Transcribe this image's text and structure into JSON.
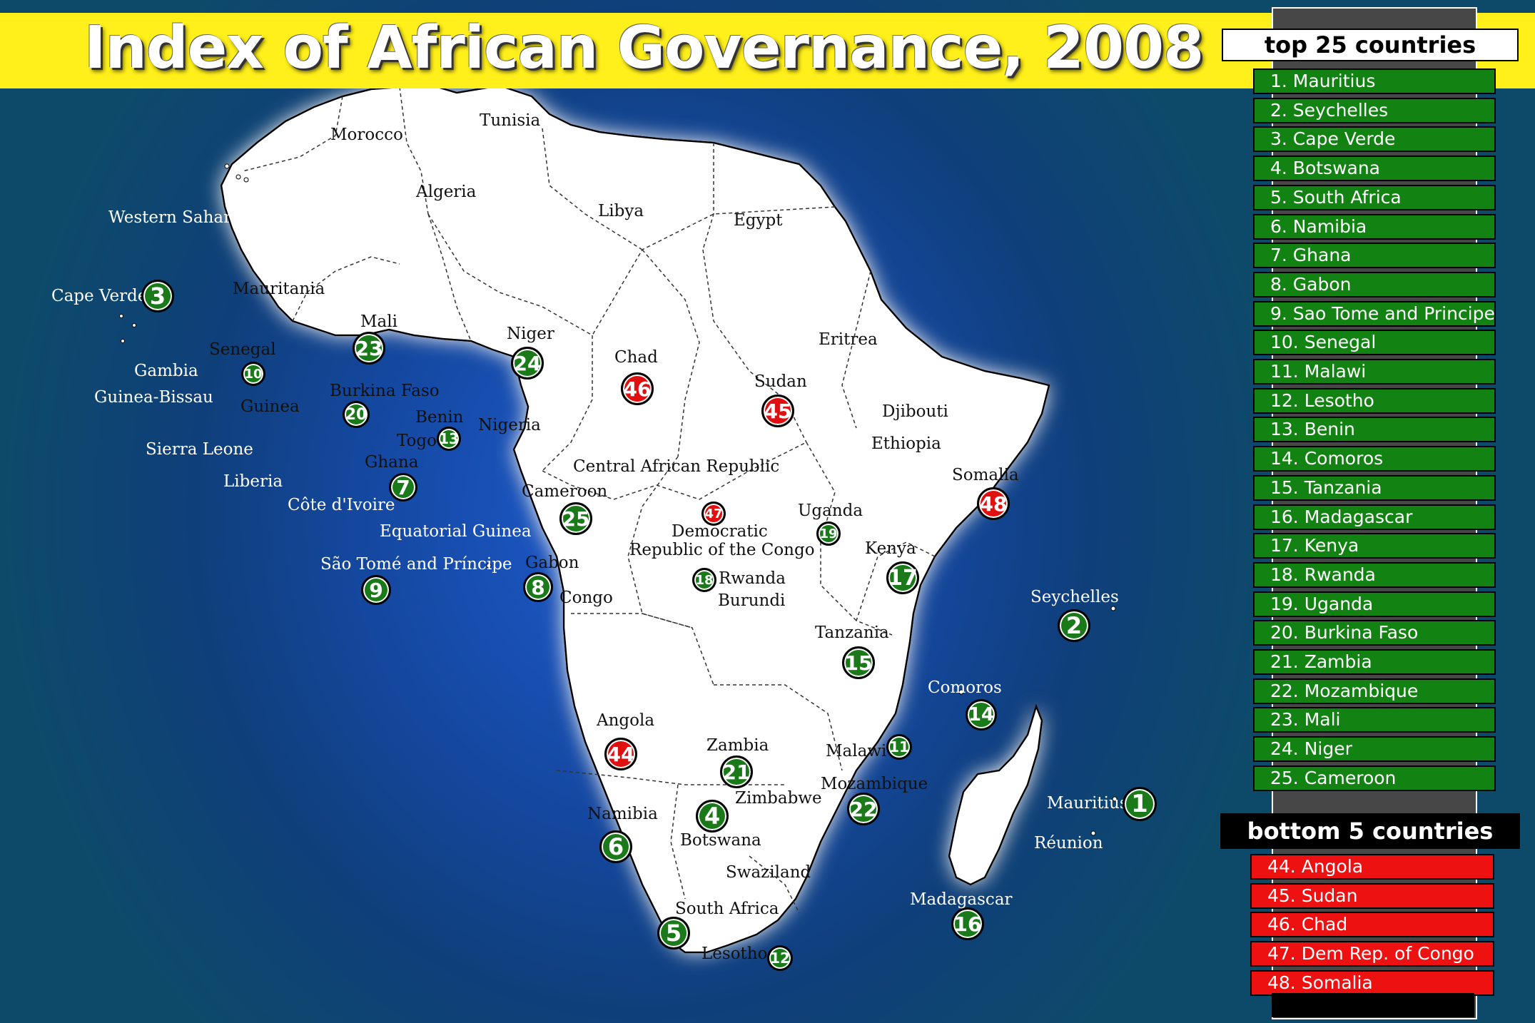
{
  "title": "Index of African Governance, 2008",
  "colors": {
    "top": "#128212",
    "bottom": "#ee1111",
    "title_bar": "#ffef1a",
    "ocean": "#1e5bd0"
  },
  "countries": [
    "Morocco",
    "Tunisia",
    "Algeria",
    "Libya",
    "Egypt",
    "Western Sahara",
    "Mauritania",
    "Mali",
    "Niger",
    "Chad",
    "Sudan",
    "Eritrea",
    "Senegal",
    "Gambia",
    "Guinea-Bissau",
    "Guinea",
    "Burkina Faso",
    "Benin",
    "Togo",
    "Nigeria",
    "Djibouti",
    "Ethiopia",
    "Sierra Leone",
    "Liberia",
    "Ghana",
    "Côte d'Ivoire",
    "Central African Republic",
    "Somalia",
    "Cameroon",
    "Equatorial Guinea",
    "Uganda",
    "Democratic",
    "Republic of the Congo",
    "Kenya",
    "São Tomé and Príncipe",
    "Gabon",
    "Congo",
    "Rwanda",
    "Burundi",
    "Seychelles",
    "Tanzania",
    "Comoros",
    "Angola",
    "Zambia",
    "Malawi",
    "Mozambique",
    "Zimbabwe",
    "Mauritius",
    "Namibia",
    "Botswana",
    "Réunion",
    "Swaziland",
    "Madagascar",
    "South Africa",
    "Lesotho",
    "Cape Verde"
  ],
  "markers": [
    "3",
    "23",
    "10",
    "24",
    "46",
    "45",
    "20",
    "13",
    "7",
    "48",
    "25",
    "47",
    "19",
    "17",
    "9",
    "8",
    "18",
    "2",
    "15",
    "14",
    "44",
    "11",
    "21",
    "22",
    "1",
    "4",
    "6",
    "16",
    "5",
    "12"
  ],
  "top_header": "top 25 countries",
  "top": [
    "1.  Mauritius",
    "2.  Seychelles",
    "3.  Cape Verde",
    "4.  Botswana",
    "5.  South Africa",
    "6.  Namibia",
    "7.  Ghana",
    "8.  Gabon",
    "9.  Sao Tome and Principe",
    "10. Senegal",
    "11. Malawi",
    "12. Lesotho",
    "13. Benin",
    "14. Comoros",
    "15. Tanzania",
    "16. Madagascar",
    "17. Kenya",
    "18. Rwanda",
    "19. Uganda",
    "20. Burkina Faso",
    "21. Zambia",
    "22. Mozambique",
    "23. Mali",
    "24. Niger",
    "25. Cameroon"
  ],
  "bottom_header": "bottom 5 countries",
  "bottom": [
    "44.  Angola",
    "45.  Sudan",
    "46.  Chad",
    "47.  Dem Rep. of Congo",
    "48.  Somalia"
  ]
}
